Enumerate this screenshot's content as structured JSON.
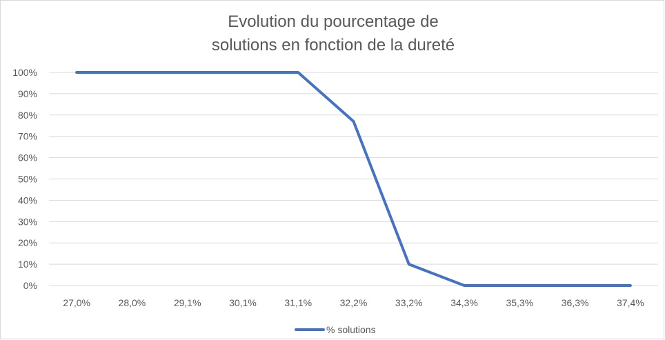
{
  "chart_data": {
    "type": "line",
    "title_lines": [
      "Evolution du pourcentage de",
      "solutions en fonction de la dureté"
    ],
    "categories": [
      "27,0%",
      "28,0%",
      "29,1%",
      "30,1%",
      "31,1%",
      "32,2%",
      "33,2%",
      "34,3%",
      "35,3%",
      "36,3%",
      "37,4%"
    ],
    "series": [
      {
        "name": "% solutions",
        "values": [
          100,
          100,
          100,
          100,
          100,
          77,
          10,
          0,
          0,
          0,
          0
        ],
        "color": "#4472C4"
      }
    ],
    "y_ticks": [
      "0%",
      "10%",
      "20%",
      "30%",
      "40%",
      "50%",
      "60%",
      "70%",
      "80%",
      "90%",
      "100%"
    ],
    "ylim": [
      0,
      100
    ],
    "y_step": 10,
    "grid": true,
    "legend_position": "bottom",
    "xlabel": "",
    "ylabel": ""
  }
}
